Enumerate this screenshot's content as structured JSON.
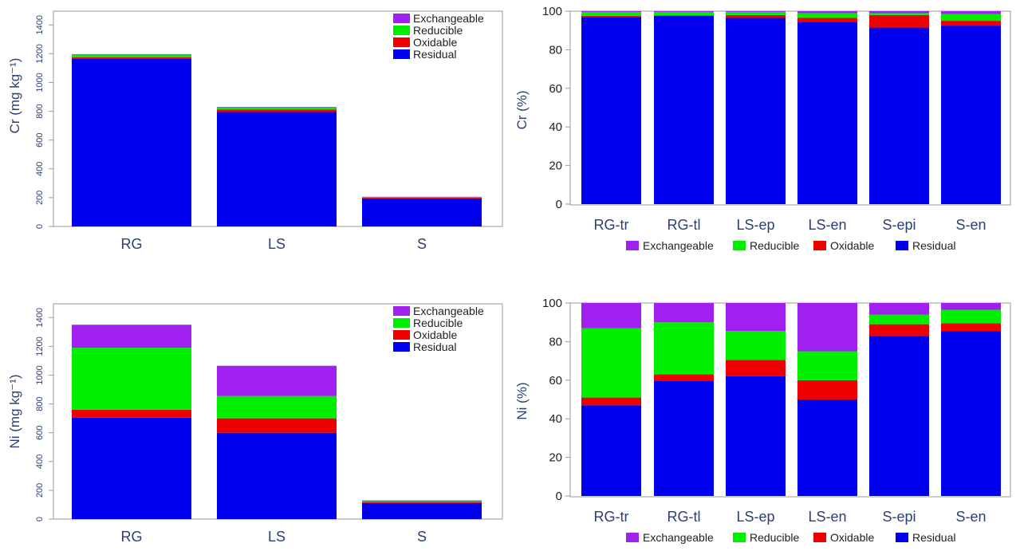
{
  "legend_labels": [
    "Exchangeable",
    "Reducible",
    "Oxidable",
    "Residual"
  ],
  "colors": {
    "Residual": "#0000ee",
    "Oxidable": "#ee0000",
    "Reducible": "#00ee00",
    "Exchangeable": "#a020f0"
  },
  "chart_data": [
    {
      "type": "bar",
      "stacked": true,
      "ylabel": "Cr (mg kg⁻¹)",
      "categories": [
        "RG",
        "LS",
        "S"
      ],
      "ylim": [
        0,
        1500
      ],
      "yticks": [
        0,
        200,
        400,
        600,
        800,
        1000,
        1200,
        1400
      ],
      "legend_position": "top-right",
      "series": [
        {
          "name": "Residual",
          "values": [
            1165,
            795,
            195
          ]
        },
        {
          "name": "Oxidable",
          "values": [
            10,
            18,
            5
          ]
        },
        {
          "name": "Reducible",
          "values": [
            20,
            15,
            5
          ]
        },
        {
          "name": "Exchangeable",
          "values": [
            2,
            2,
            1
          ]
        }
      ]
    },
    {
      "type": "bar",
      "stacked": true,
      "ylabel": "Cr (%)",
      "categories": [
        "RG-tr",
        "RG-tl",
        "LS-ep",
        "LS-en",
        "S-epi",
        "S-en"
      ],
      "ylim": [
        0,
        100
      ],
      "yticks": [
        0,
        20,
        40,
        60,
        80,
        100
      ],
      "legend_position": "bottom",
      "series": [
        {
          "name": "Residual",
          "values": [
            97,
            97.5,
            96.5,
            94.5,
            91.5,
            92.5
          ]
        },
        {
          "name": "Oxidable",
          "values": [
            0.5,
            0.3,
            1.5,
            2,
            6.5,
            2.5
          ]
        },
        {
          "name": "Reducible",
          "values": [
            2,
            1.8,
            1.5,
            2.5,
            1,
            3.5
          ]
        },
        {
          "name": "Exchangeable",
          "values": [
            0.5,
            0.4,
            0.5,
            1,
            1,
            1.5
          ]
        }
      ]
    },
    {
      "type": "bar",
      "stacked": true,
      "ylabel": "Ni (mg kg⁻¹)",
      "categories": [
        "RG",
        "LS",
        "S"
      ],
      "ylim": [
        0,
        1500
      ],
      "yticks": [
        0,
        200,
        400,
        600,
        800,
        1000,
        1200,
        1400
      ],
      "legend_position": "top-right",
      "series": [
        {
          "name": "Residual",
          "values": [
            705,
            600,
            112
          ]
        },
        {
          "name": "Oxidable",
          "values": [
            55,
            100,
            8
          ]
        },
        {
          "name": "Reducible",
          "values": [
            430,
            155,
            5
          ]
        },
        {
          "name": "Exchangeable",
          "values": [
            160,
            210,
            5
          ]
        }
      ]
    },
    {
      "type": "bar",
      "stacked": true,
      "ylabel": "Ni (%)",
      "categories": [
        "RG-tr",
        "RG-tl",
        "LS-ep",
        "LS-en",
        "S-epi",
        "S-en"
      ],
      "ylim": [
        0,
        100
      ],
      "yticks": [
        0,
        20,
        40,
        60,
        80,
        100
      ],
      "legend_position": "bottom",
      "series": [
        {
          "name": "Residual",
          "values": [
            47,
            59.5,
            62,
            50,
            83,
            85.5
          ]
        },
        {
          "name": "Oxidable",
          "values": [
            4,
            3.5,
            8.5,
            10,
            6,
            4
          ]
        },
        {
          "name": "Reducible",
          "values": [
            36,
            27,
            15,
            15,
            5,
            7
          ]
        },
        {
          "name": "Exchangeable",
          "values": [
            13,
            10,
            14.5,
            25,
            6,
            3.5
          ]
        }
      ]
    }
  ]
}
